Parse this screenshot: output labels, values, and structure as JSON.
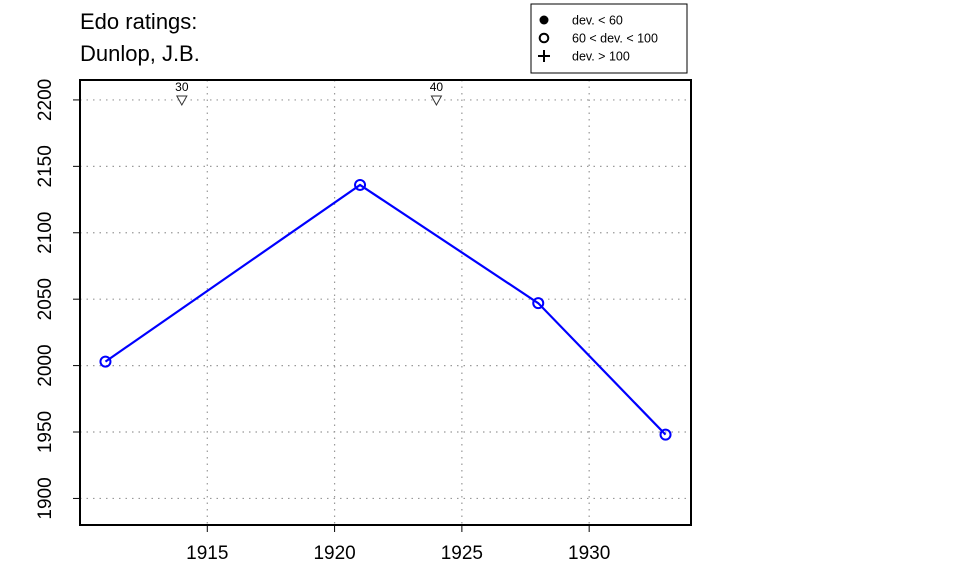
{
  "chart_data": {
    "type": "line",
    "title_line1": "Edo ratings:",
    "title_line2": "Dunlop, J.B.",
    "xlabel": "",
    "ylabel": "",
    "xlim": [
      1910.0,
      1934.0
    ],
    "ylim": [
      1880,
      2215
    ],
    "x_ticks": [
      1915,
      1920,
      1925,
      1930
    ],
    "y_ticks": [
      1900,
      1950,
      2000,
      2050,
      2100,
      2150,
      2200
    ],
    "grid": true,
    "series": [
      {
        "color": "#0000ff",
        "marker": "open-circle",
        "points": [
          {
            "x": 1911,
            "y": 2003
          },
          {
            "x": 1921,
            "y": 2136
          },
          {
            "x": 1928,
            "y": 2047
          },
          {
            "x": 1933,
            "y": 1948
          }
        ]
      }
    ],
    "age_markers": [
      {
        "x": 1914,
        "label": "30"
      },
      {
        "x": 1924,
        "label": "40"
      }
    ],
    "legend": {
      "placement": "top-right",
      "entries": [
        {
          "symbol": "filled-circle",
          "label": "dev. < 60"
        },
        {
          "symbol": "open-circle",
          "label": "60 < dev. < 100"
        },
        {
          "symbol": "plus",
          "label": "dev. > 100"
        }
      ]
    }
  }
}
